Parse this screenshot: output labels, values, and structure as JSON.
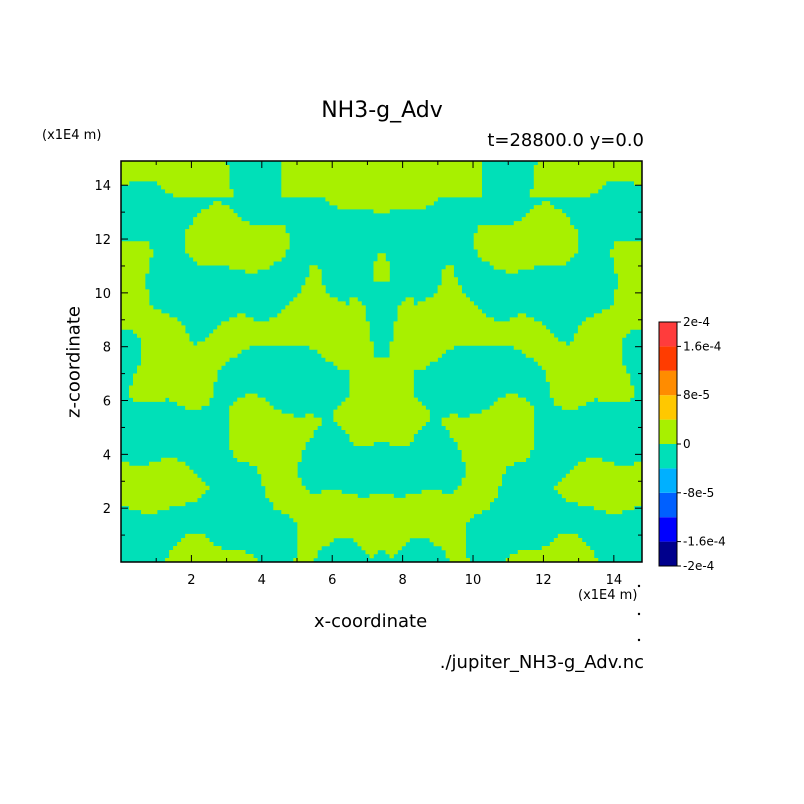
{
  "chart_data": {
    "type": "heatmap",
    "title": "NH3-g_Adv",
    "subtitle": "t=28800.0 y=0.0",
    "xlabel": "x-coordinate",
    "ylabel": "z-coordinate",
    "x_unit": "(x1E4 m)",
    "y_unit": "(x1E4 m)",
    "xlim": [
      0,
      14.8
    ],
    "ylim": [
      0,
      14.9
    ],
    "x_ticks": [
      2,
      4,
      6,
      8,
      10,
      12,
      14
    ],
    "y_ticks": [
      2,
      4,
      6,
      8,
      10,
      12,
      14
    ],
    "colorbar": {
      "levels": [
        -0.0002,
        -0.00016,
        -0.00012,
        -8e-05,
        -4e-05,
        0,
        4e-05,
        8e-05,
        0.00012,
        0.00016,
        0.0002
      ],
      "colors": [
        "#00008c",
        "#0000ff",
        "#0060ff",
        "#00b0ff",
        "#00e0b8",
        "#a8f000",
        "#ffc800",
        "#ff8c00",
        "#ff3c00",
        "#ff3c3c"
      ],
      "tick_labels": [
        "2e-4",
        "1.6e-4",
        "8e-5",
        "0",
        "-8e-5",
        "-1.6e-4",
        "-2e-4"
      ]
    },
    "field_values_present": [
      "-4e-5 to 0",
      "0 to 4e-5"
    ],
    "source_file": "./jupiter_NH3-g_Adv.nc"
  }
}
